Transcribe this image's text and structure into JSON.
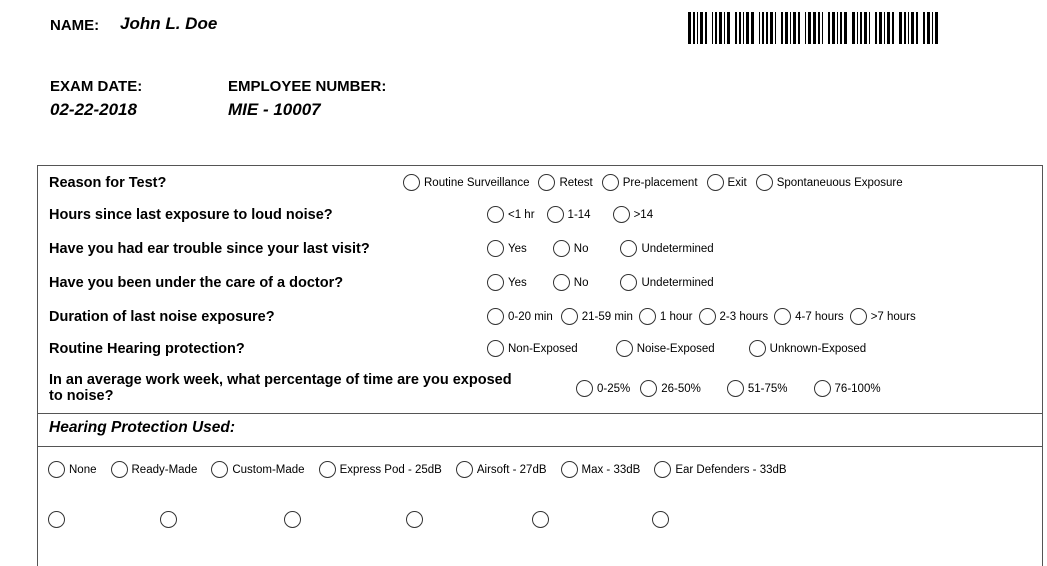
{
  "header": {
    "name_label": "NAME:",
    "name": "John L. Doe",
    "exam_date_label": "EXAM DATE:",
    "exam_date": "02-22-2018",
    "employee_number_label": "EMPLOYEE NUMBER:",
    "employee_number": "MIE - 10007"
  },
  "questions": [
    {
      "label": "Reason for Test?",
      "options": [
        "Routine Surveillance",
        "Retest",
        "Pre-placement",
        "Exit",
        "Spontaneuous Exposure"
      ]
    },
    {
      "label": "Hours since last exposure to loud noise?",
      "options": [
        "<1 hr",
        "1-14",
        ">14"
      ]
    },
    {
      "label": "Have you had ear trouble since your last visit?",
      "options": [
        "Yes",
        "No",
        "Undetermined"
      ]
    },
    {
      "label": "Have you been under the care of a doctor?",
      "options": [
        "Yes",
        "No",
        "Undetermined"
      ]
    },
    {
      "label": "Duration of last noise exposure?",
      "options": [
        "0-20 min",
        "21-59 min",
        "1 hour",
        "2-3 hours",
        "4-7 hours",
        ">7 hours"
      ]
    },
    {
      "label": "Routine Hearing protection?",
      "options": [
        "Non-Exposed",
        "Noise-Exposed",
        "Unknown-Exposed"
      ]
    },
    {
      "label": "In an average work week, what percentage of time are you exposed to noise?",
      "options": [
        "0-25%",
        "26-50%",
        "51-75%",
        "76-100%"
      ]
    }
  ],
  "hearing_protection": {
    "title": "Hearing Protection Used:",
    "options": [
      "None",
      "Ready-Made",
      "Custom-Made",
      "Express Pod - 25dB",
      "Airsoft - 27dB",
      "Max - 33dB",
      "Ear Defenders - 33dB"
    ]
  }
}
